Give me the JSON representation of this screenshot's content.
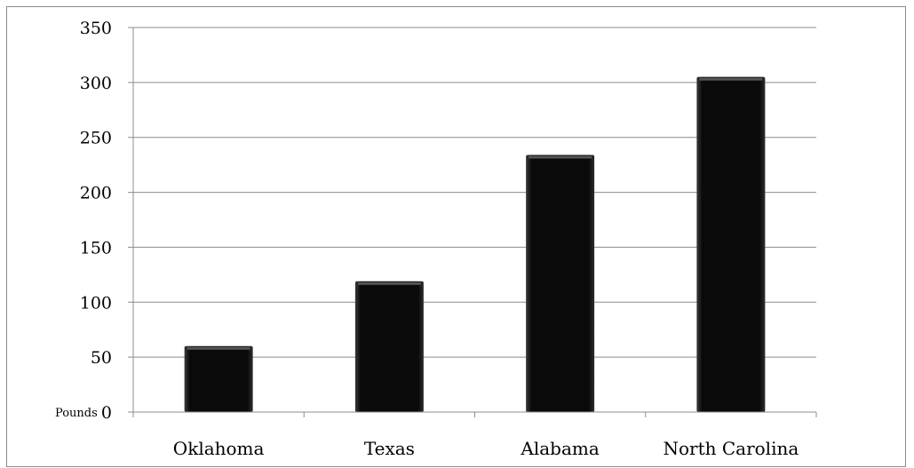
{
  "chart_data": {
    "type": "bar",
    "categories": [
      "Oklahoma",
      "Texas",
      "Alabama",
      "North Carolina"
    ],
    "values": [
      60,
      119,
      234,
      305
    ],
    "title": "",
    "xlabel": "",
    "ylabel": "Pounds",
    "ylim": [
      0,
      350
    ],
    "yticks": [
      "0",
      "50",
      "100",
      "150",
      "200",
      "250",
      "300",
      "350"
    ],
    "grid": true,
    "legend": "none",
    "bar_color": "#000000"
  }
}
